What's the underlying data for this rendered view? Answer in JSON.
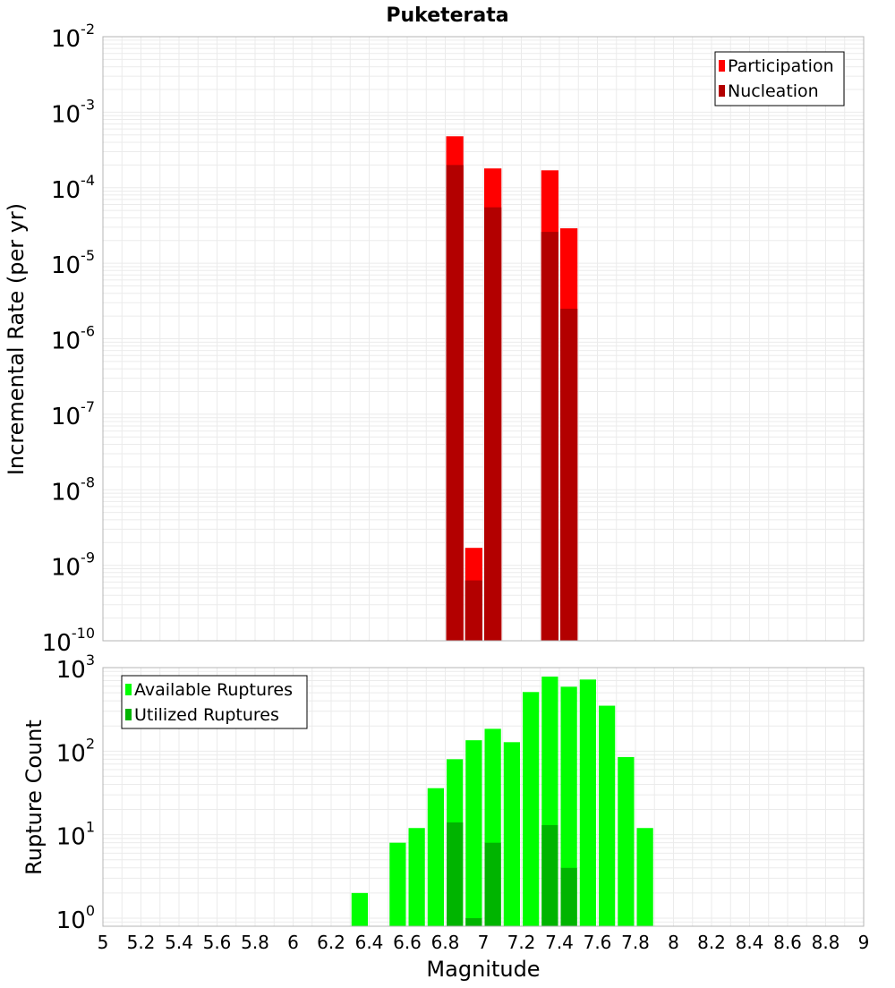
{
  "chart_data": [
    {
      "type": "bar",
      "title": "Puketerata",
      "xlabel": "",
      "ylabel": "Incremental Rate (per yr)",
      "yscale": "log",
      "ylim": [
        1e-10,
        0.01
      ],
      "xlim": [
        5,
        9
      ],
      "bar_width": 0.1,
      "legend": {
        "placement": "top-right",
        "entries": [
          "Participation",
          "Nucleation"
        ]
      },
      "series": [
        {
          "name": "Participation",
          "color": "#ff0000",
          "x": [
            6.85,
            6.95,
            7.05,
            7.35,
            7.45
          ],
          "values": [
            0.00048,
            1.7e-09,
            0.00018,
            0.00017,
            2.9e-05
          ]
        },
        {
          "name": "Nucleation",
          "color": "#b30000",
          "x": [
            6.85,
            6.95,
            7.05,
            7.35,
            7.45
          ],
          "values": [
            0.0002,
            6.3e-10,
            5.5e-05,
            2.6e-05,
            2.5e-06
          ]
        }
      ]
    },
    {
      "type": "bar",
      "title": "",
      "xlabel": "Magnitude",
      "ylabel": "Rupture Count",
      "yscale": "log",
      "ylim": [
        0.8,
        1000
      ],
      "xlim": [
        5,
        9
      ],
      "bar_width": 0.1,
      "x_ticks": [
        "5",
        "5.2",
        "5.4",
        "5.6",
        "5.8",
        "6",
        "6.2",
        "6.4",
        "6.6",
        "6.8",
        "7",
        "7.2",
        "7.4",
        "7.6",
        "7.8",
        "8",
        "8.2",
        "8.4",
        "8.6",
        "8.8",
        "9"
      ],
      "legend": {
        "placement": "top-left",
        "entries": [
          "Available Ruptures",
          "Utilized Ruptures"
        ]
      },
      "series": [
        {
          "name": "Available Ruptures",
          "color": "#00ff00",
          "x": [
            6.35,
            6.55,
            6.65,
            6.75,
            6.85,
            6.95,
            7.05,
            7.15,
            7.25,
            7.35,
            7.45,
            7.55,
            7.65,
            7.75,
            7.85
          ],
          "values": [
            2,
            8,
            12,
            36,
            80,
            135,
            185,
            128,
            510,
            780,
            590,
            720,
            350,
            85,
            12
          ]
        },
        {
          "name": "Utilized Ruptures",
          "color": "#00b400",
          "x": [
            6.85,
            6.95,
            7.05,
            7.35,
            7.45
          ],
          "values": [
            14,
            1,
            8,
            13,
            4
          ]
        }
      ]
    }
  ]
}
